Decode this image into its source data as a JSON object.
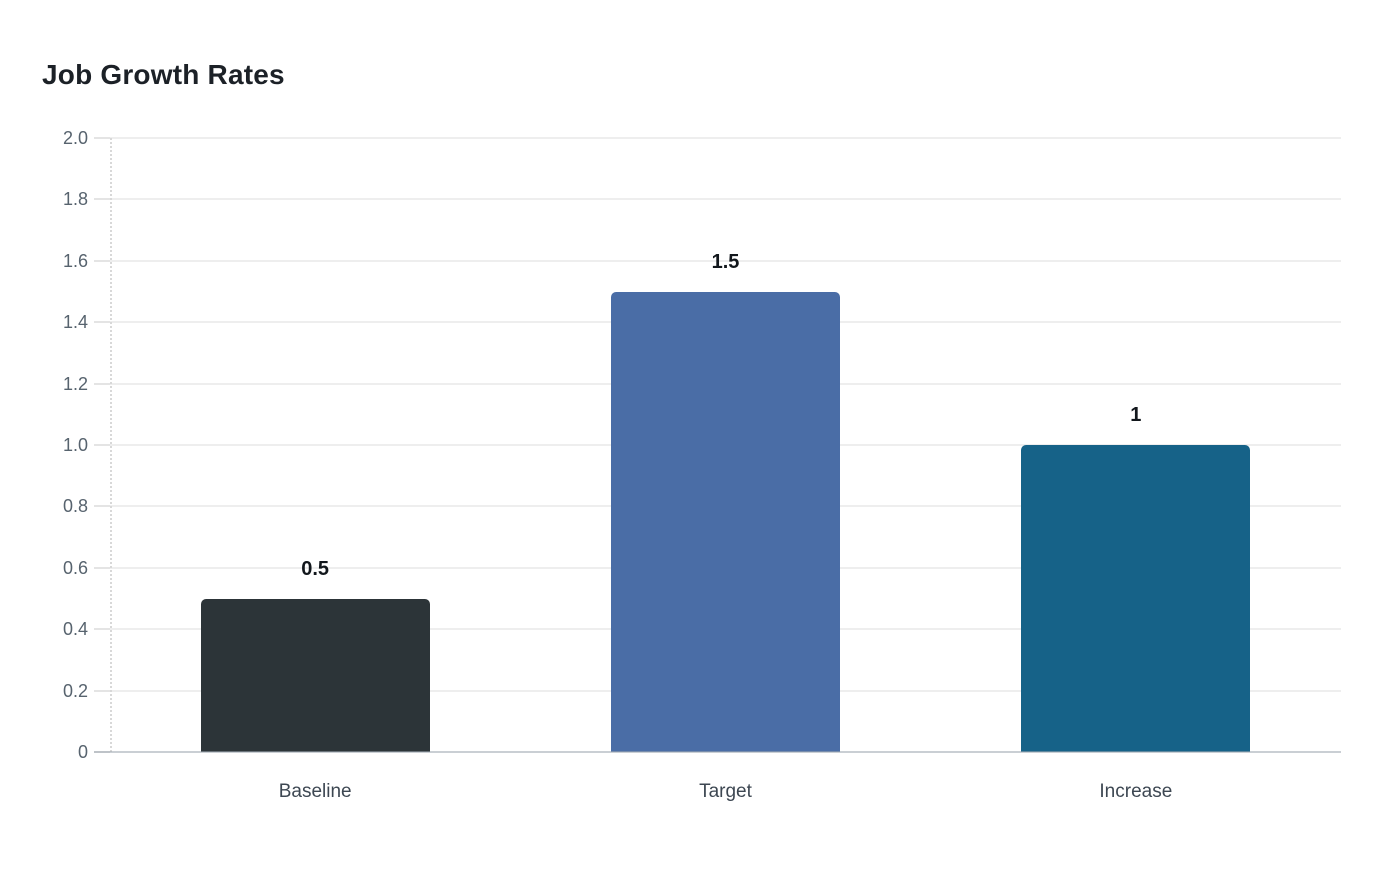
{
  "chart_data": {
    "type": "bar",
    "title": "Job Growth Rates",
    "categories": [
      "Baseline",
      "Target",
      "Increase"
    ],
    "values": [
      0.5,
      1.5,
      1
    ],
    "value_labels": [
      "0.5",
      "1.5",
      "1"
    ],
    "bar_colors": [
      "#2c3438",
      "#4a6da6",
      "#166288"
    ],
    "ylim": [
      0,
      2
    ],
    "yticks": [
      0,
      0.2,
      0.4,
      0.6,
      0.8,
      1.0,
      1.2,
      1.4,
      1.6,
      1.8,
      2.0
    ],
    "ytick_labels": [
      "0",
      "0.2",
      "0.4",
      "0.6",
      "0.8",
      "1.0",
      "1.2",
      "1.4",
      "1.6",
      "1.8",
      "2.0"
    ],
    "xlabel": "",
    "ylabel": "",
    "grid": true,
    "legend_position": "none"
  },
  "colors": {
    "background": "#ffffff",
    "title": "#1c2127",
    "y_tick_label": "#57636e",
    "x_tick_label": "#3d4752",
    "value_label": "#12171c",
    "gridline": "#eeeeee",
    "tick_mark": "#e4e4e4",
    "dotted_line": "#d8d8d8",
    "axis_line": "#9ea8b0"
  }
}
